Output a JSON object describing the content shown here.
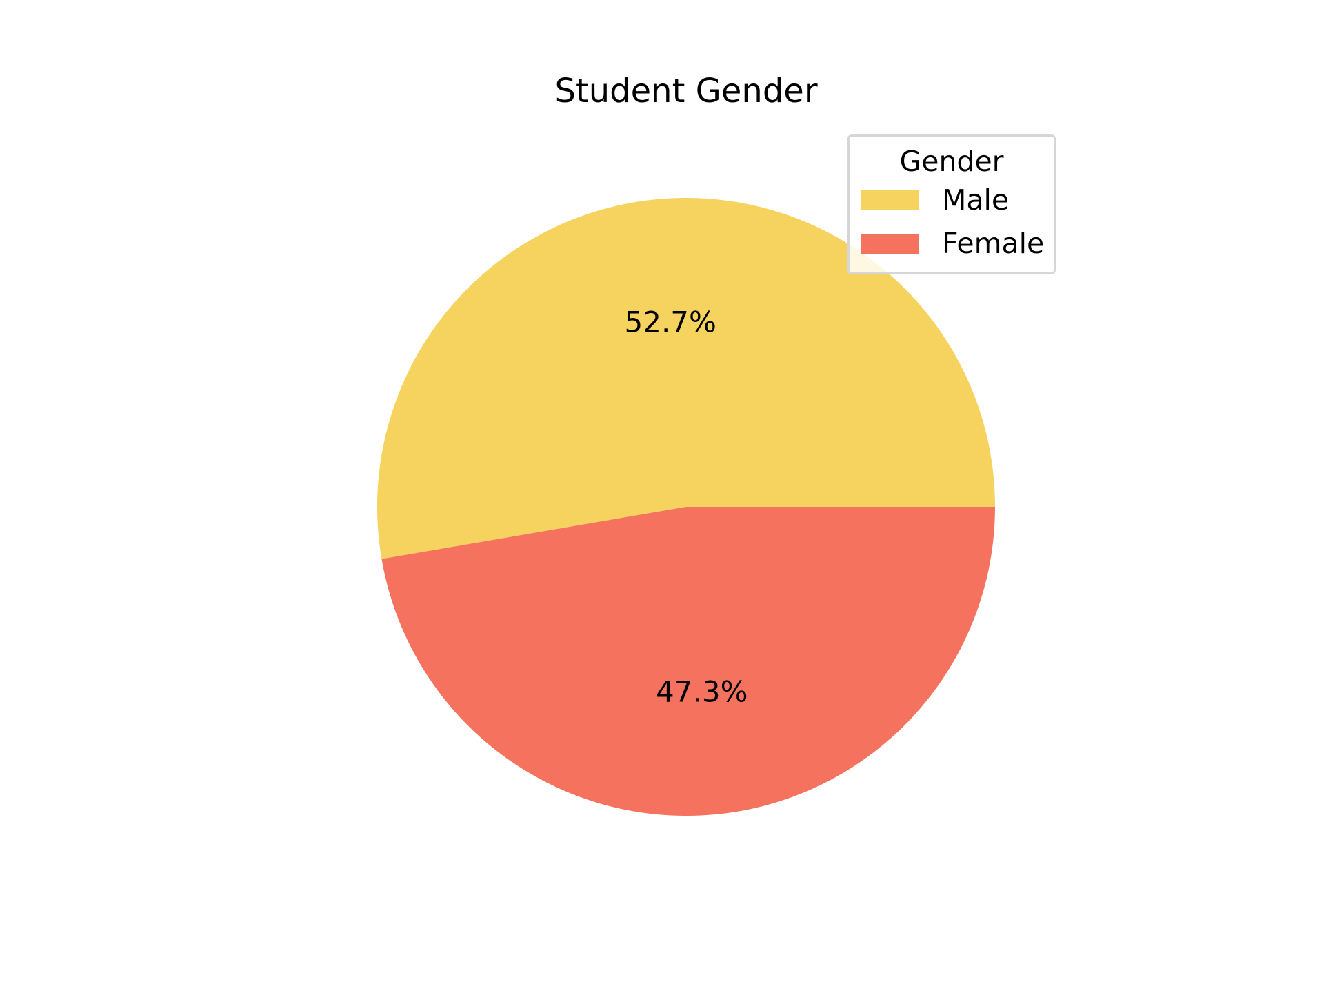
{
  "chart_data": {
    "type": "pie",
    "title": "Student Gender",
    "legend": {
      "title": "Gender",
      "placement": "top-right"
    },
    "slices": [
      {
        "label": "Male",
        "value": 52.7,
        "value_label": "52.7%",
        "color": "#f6d25e"
      },
      {
        "label": "Female",
        "value": 47.3,
        "value_label": "47.3%",
        "color": "#f5735e"
      }
    ]
  }
}
